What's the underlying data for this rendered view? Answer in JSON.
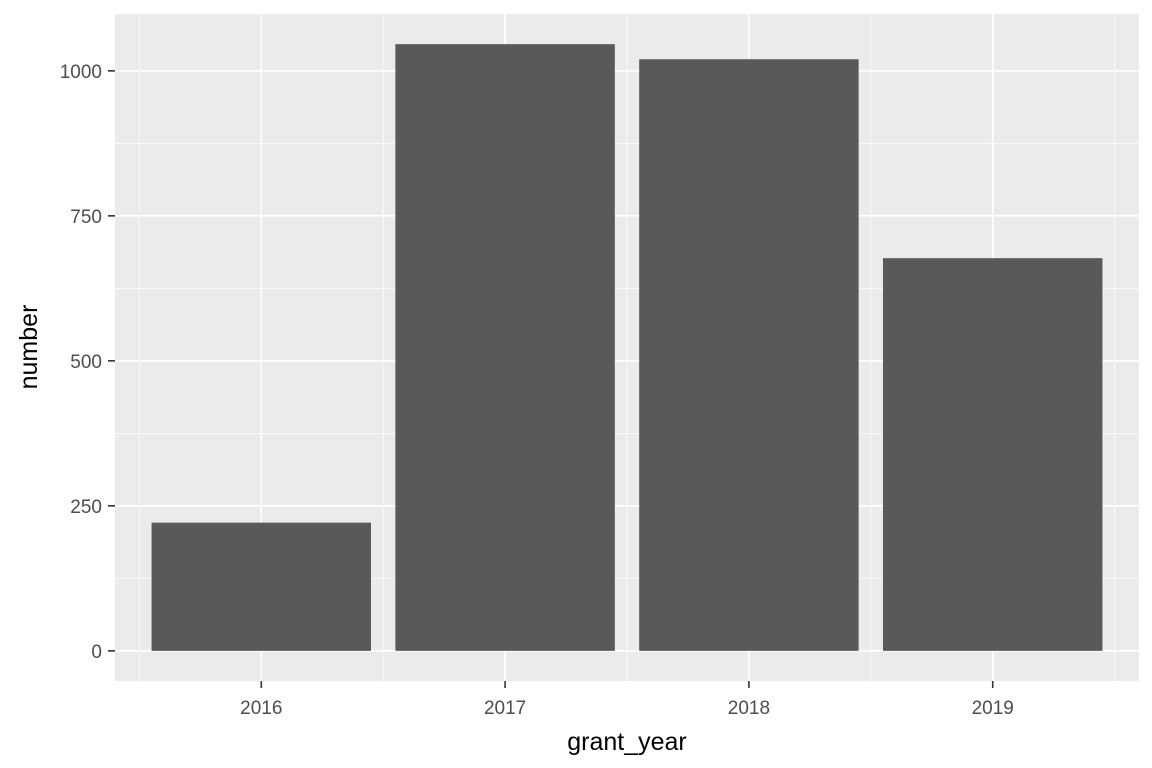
{
  "chart_data": {
    "type": "bar",
    "categories": [
      "2016",
      "2017",
      "2018",
      "2019"
    ],
    "values": [
      221,
      1046,
      1020,
      677
    ],
    "title": "",
    "xlabel": "grant_year",
    "ylabel": "number",
    "ylim": [
      -52,
      1098
    ],
    "yticks": [
      0,
      250,
      500,
      750,
      1000
    ],
    "grid": true,
    "legend": "none",
    "colors": {
      "panel": "#ebebeb",
      "grid": "#ffffff",
      "bar": "#595959",
      "tick_text": "#4d4d4d",
      "tick_mark": "#333333"
    }
  }
}
